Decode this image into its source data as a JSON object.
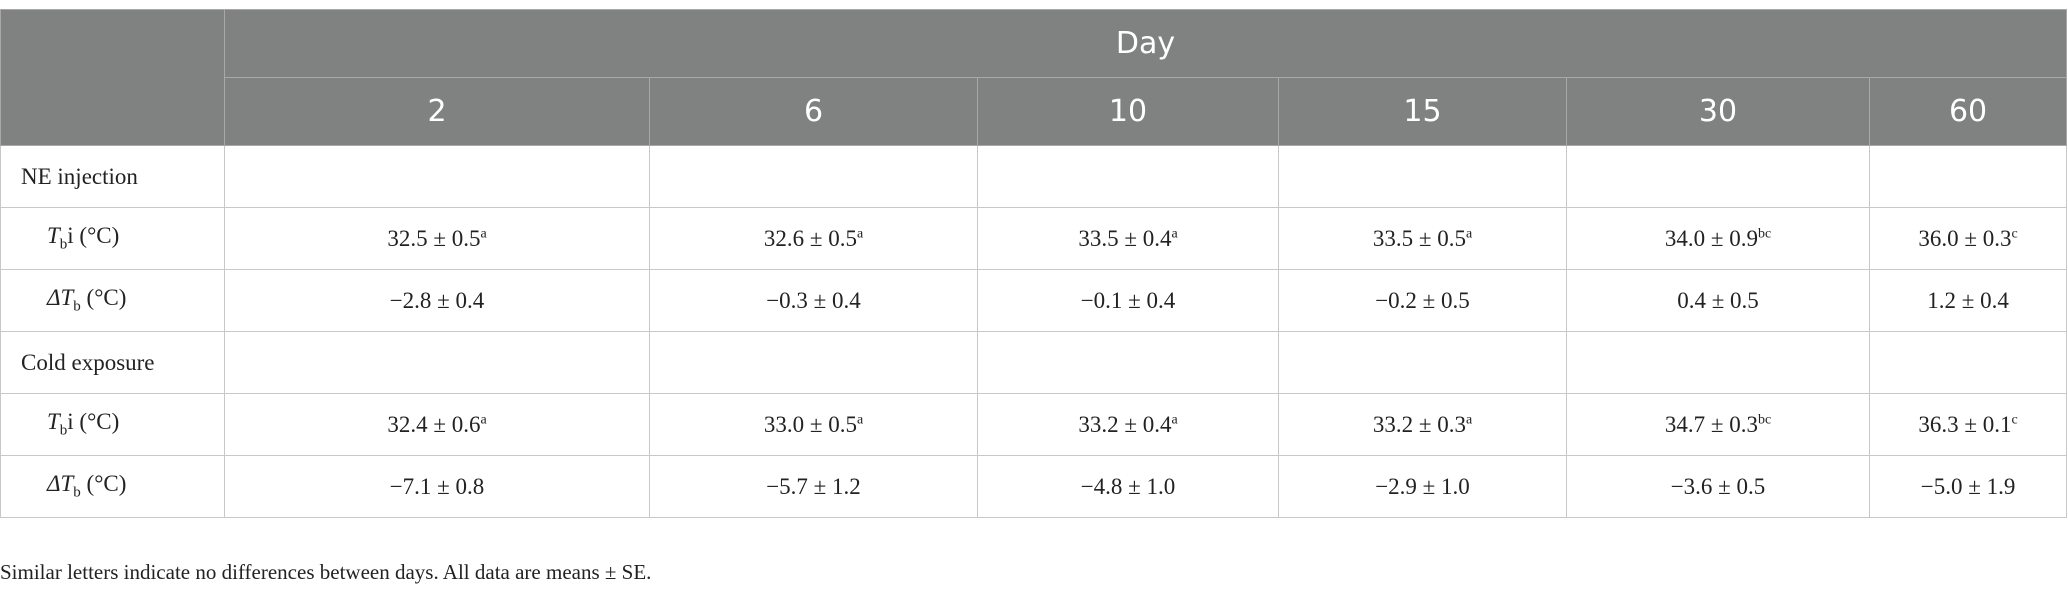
{
  "table": {
    "group_header": "Day",
    "columns": [
      "2",
      "6",
      "10",
      "15",
      "30",
      "60"
    ],
    "sections": [
      {
        "title": "NE injection",
        "rows": [
          {
            "label": {
              "symbol": "T",
              "subscript": "b",
              "suffix": "i (°C)"
            },
            "cells": [
              {
                "value": "32.5 ± 0.5",
                "sup": "a"
              },
              {
                "value": "32.6 ± 0.5",
                "sup": "a"
              },
              {
                "value": "33.5 ± 0.4",
                "sup": "a"
              },
              {
                "value": "33.5 ± 0.5",
                "sup": "a"
              },
              {
                "value": "34.0 ± 0.9",
                "sup": "bc"
              },
              {
                "value": "36.0 ± 0.3",
                "sup": "c"
              }
            ]
          },
          {
            "label": {
              "symbol": "ΔT",
              "subscript": "b",
              "suffix": " (°C)"
            },
            "cells": [
              {
                "value": "−2.8 ± 0.4"
              },
              {
                "value": "−0.3 ± 0.4"
              },
              {
                "value": "−0.1 ± 0.4"
              },
              {
                "value": "−0.2 ± 0.5"
              },
              {
                "value": "0.4 ± 0.5"
              },
              {
                "value": "1.2 ± 0.4"
              }
            ]
          }
        ]
      },
      {
        "title": "Cold exposure",
        "rows": [
          {
            "label": {
              "symbol": "T",
              "subscript": "b",
              "suffix": "i (°C)"
            },
            "cells": [
              {
                "value": "32.4 ± 0.6",
                "sup": "a"
              },
              {
                "value": "33.0 ± 0.5",
                "sup": "a"
              },
              {
                "value": "33.2 ± 0.4",
                "sup": "a"
              },
              {
                "value": "33.2 ± 0.3",
                "sup": "a"
              },
              {
                "value": "34.7 ± 0.3",
                "sup": "bc"
              },
              {
                "value": "36.3 ± 0.1",
                "sup": "c"
              }
            ]
          },
          {
            "label": {
              "symbol": "ΔT",
              "subscript": "b",
              "suffix": " (°C)"
            },
            "cells": [
              {
                "value": "−7.1 ± 0.8"
              },
              {
                "value": "−5.7 ± 1.2"
              },
              {
                "value": "−4.8 ± 1.0"
              },
              {
                "value": "−2.9 ± 1.0"
              },
              {
                "value": "−3.6 ± 0.5"
              },
              {
                "value": "−5.0 ± 1.9"
              }
            ]
          }
        ]
      }
    ]
  },
  "footnote": "Similar letters indicate no differences between days. All data are means ± SE."
}
